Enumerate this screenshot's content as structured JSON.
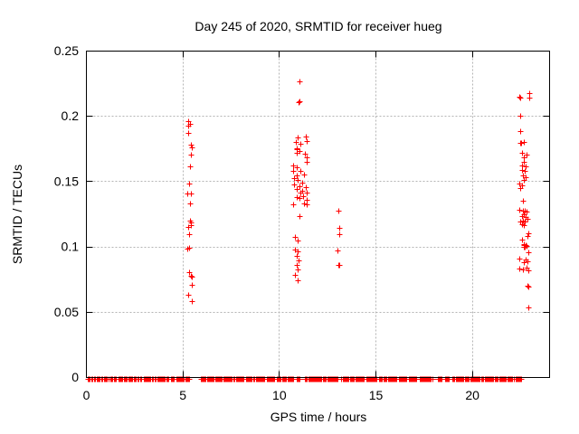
{
  "chart_data": {
    "type": "scatter",
    "title": "Day 245 of 2020, SRMTID for receiver hueg",
    "xlabel": "GPS time / hours",
    "ylabel": "SRMTID / TECUs",
    "xlim": [
      0,
      24
    ],
    "ylim": [
      0,
      0.25
    ],
    "xticks": {
      "values": [
        0,
        5,
        10,
        15,
        20
      ],
      "labels": [
        "0",
        "5",
        "10",
        "15",
        "20"
      ]
    },
    "yticks": {
      "values": [
        0,
        0.05,
        0.1,
        0.15,
        0.2,
        0.25
      ],
      "labels": [
        "0",
        "0.05",
        "0.1",
        "0.15",
        "0.2",
        "0.25"
      ]
    },
    "grid": true,
    "legend": "none",
    "marker": {
      "shape": "plus",
      "size": 7,
      "color": "#ff0000"
    },
    "axis_color": "#000000",
    "grid_color": "#b4b4b4",
    "background": "#ffffff",
    "series": [
      {
        "name": "SRMTID",
        "points": [
          [
            5.32,
            0.1958
          ],
          [
            5.4,
            0.1942
          ],
          [
            5.32,
            0.1924
          ],
          [
            5.3,
            0.1873
          ],
          [
            5.43,
            0.178
          ],
          [
            5.5,
            0.1762
          ],
          [
            5.46,
            0.1704
          ],
          [
            5.38,
            0.1611
          ],
          [
            5.35,
            0.1484
          ],
          [
            5.27,
            0.1403
          ],
          [
            5.46,
            0.1403
          ],
          [
            5.4,
            0.1333
          ],
          [
            5.4,
            0.1201
          ],
          [
            5.43,
            0.1183
          ],
          [
            5.32,
            0.1148
          ],
          [
            5.46,
            0.116
          ],
          [
            5.35,
            0.1095
          ],
          [
            5.24,
            0.0986
          ],
          [
            5.35,
            0.0993
          ],
          [
            5.35,
            0.0801
          ],
          [
            5.43,
            0.0778
          ],
          [
            5.5,
            0.0766
          ],
          [
            5.47,
            0.0708
          ],
          [
            5.32,
            0.0627
          ],
          [
            5.47,
            0.0581
          ],
          [
            11.06,
            0.2266
          ],
          [
            11.06,
            0.2109
          ],
          [
            11.03,
            0.2102
          ],
          [
            10.95,
            0.1835
          ],
          [
            11.37,
            0.1842
          ],
          [
            10.87,
            0.1803
          ],
          [
            11.13,
            0.1789
          ],
          [
            11.45,
            0.1807
          ],
          [
            10.9,
            0.175
          ],
          [
            10.92,
            0.1748
          ],
          [
            10.9,
            0.172
          ],
          [
            11.06,
            0.1734
          ],
          [
            11.34,
            0.171
          ],
          [
            11.45,
            0.1681
          ],
          [
            11.42,
            0.1651
          ],
          [
            10.74,
            0.1623
          ],
          [
            10.9,
            0.1604
          ],
          [
            10.74,
            0.1576
          ],
          [
            11.13,
            0.1576
          ],
          [
            10.9,
            0.1542
          ],
          [
            10.79,
            0.1526
          ],
          [
            11.29,
            0.1553
          ],
          [
            10.95,
            0.1507
          ],
          [
            11.21,
            0.1488
          ],
          [
            10.79,
            0.1472
          ],
          [
            11.06,
            0.146
          ],
          [
            10.9,
            0.1438
          ],
          [
            11.37,
            0.1456
          ],
          [
            11.21,
            0.1426
          ],
          [
            11.11,
            0.141
          ],
          [
            11.42,
            0.1415
          ],
          [
            10.9,
            0.138
          ],
          [
            11.26,
            0.1387
          ],
          [
            11.06,
            0.1368
          ],
          [
            11.42,
            0.1356
          ],
          [
            10.74,
            0.1326
          ],
          [
            11.29,
            0.1333
          ],
          [
            11.45,
            0.1322
          ],
          [
            11.06,
            0.1234
          ],
          [
            10.85,
            0.1072
          ],
          [
            10.95,
            0.1044
          ],
          [
            10.82,
            0.0979
          ],
          [
            10.98,
            0.0963
          ],
          [
            10.9,
            0.0928
          ],
          [
            11.01,
            0.0894
          ],
          [
            10.9,
            0.0859
          ],
          [
            10.95,
            0.0824
          ],
          [
            10.85,
            0.0785
          ],
          [
            10.95,
            0.0743
          ],
          [
            13.09,
            0.1271
          ],
          [
            13.14,
            0.1141
          ],
          [
            13.14,
            0.1097
          ],
          [
            13.04,
            0.097
          ],
          [
            13.09,
            0.0859
          ],
          [
            13.12,
            0.0856
          ],
          [
            22.44,
            0.2144
          ],
          [
            22.52,
            0.2141
          ],
          [
            22.99,
            0.2174
          ],
          [
            22.99,
            0.2137
          ],
          [
            22.51,
            0.1998
          ],
          [
            22.51,
            0.1882
          ],
          [
            22.52,
            0.1796
          ],
          [
            22.57,
            0.1796
          ],
          [
            22.71,
            0.1803
          ],
          [
            22.58,
            0.1715
          ],
          [
            22.84,
            0.1704
          ],
          [
            22.68,
            0.1681
          ],
          [
            22.71,
            0.1646
          ],
          [
            22.58,
            0.1623
          ],
          [
            22.79,
            0.1611
          ],
          [
            22.58,
            0.1588
          ],
          [
            22.74,
            0.1576
          ],
          [
            22.63,
            0.1542
          ],
          [
            22.79,
            0.153
          ],
          [
            22.68,
            0.1507
          ],
          [
            22.47,
            0.1479
          ],
          [
            22.58,
            0.1465
          ],
          [
            22.52,
            0.1449
          ],
          [
            22.63,
            0.1349
          ],
          [
            22.47,
            0.128
          ],
          [
            22.63,
            0.1276
          ],
          [
            22.74,
            0.1271
          ],
          [
            22.84,
            0.1264
          ],
          [
            22.68,
            0.1248
          ],
          [
            22.58,
            0.1234
          ],
          [
            22.79,
            0.1229
          ],
          [
            22.86,
            0.1211
          ],
          [
            22.63,
            0.1201
          ],
          [
            22.52,
            0.1194
          ],
          [
            22.74,
            0.1188
          ],
          [
            22.58,
            0.1171
          ],
          [
            22.68,
            0.116
          ],
          [
            22.94,
            0.1102
          ],
          [
            22.86,
            0.1079
          ],
          [
            22.58,
            0.1056
          ],
          [
            22.71,
            0.1021
          ],
          [
            22.79,
            0.1009
          ],
          [
            22.68,
            0.0998
          ],
          [
            22.75,
            0.0995
          ],
          [
            22.71,
            0.1014
          ],
          [
            22.82,
            0.1005
          ],
          [
            22.94,
            0.0956
          ],
          [
            22.47,
            0.091
          ],
          [
            22.79,
            0.0901
          ],
          [
            22.86,
            0.0887
          ],
          [
            22.68,
            0.0877
          ],
          [
            22.47,
            0.0831
          ],
          [
            22.63,
            0.0824
          ],
          [
            22.84,
            0.0835
          ],
          [
            22.94,
            0.0817
          ],
          [
            22.86,
            0.0697
          ],
          [
            22.9,
            0.0694
          ],
          [
            22.9,
            0.0535
          ]
        ]
      }
    ],
    "baseline": {
      "value": 0,
      "step_hours": 0.05,
      "segments": [
        [
          0.08,
          0.22
        ],
        [
          0.28,
          0.34
        ],
        [
          0.42,
          0.48
        ],
        [
          0.55,
          0.6
        ],
        [
          0.66,
          0.72
        ],
        [
          0.8,
          0.86
        ],
        [
          0.92,
          1.04
        ],
        [
          1.1,
          1.18
        ],
        [
          1.25,
          1.3
        ],
        [
          1.38,
          1.44
        ],
        [
          1.52,
          1.6
        ],
        [
          1.68,
          1.88
        ],
        [
          1.98,
          2.28
        ],
        [
          2.36,
          2.42
        ],
        [
          2.5,
          2.72
        ],
        [
          2.82,
          2.9
        ],
        [
          3.0,
          3.45
        ],
        [
          3.55,
          3.62
        ],
        [
          3.7,
          4.28
        ],
        [
          4.4,
          4.58
        ],
        [
          4.68,
          5.08
        ],
        [
          5.16,
          5.38
        ],
        [
          5.95,
          6.2
        ],
        [
          6.28,
          7.05
        ],
        [
          7.12,
          7.58
        ],
        [
          7.66,
          8.2
        ],
        [
          8.3,
          8.7
        ],
        [
          8.8,
          9.28
        ],
        [
          9.36,
          9.8
        ],
        [
          9.9,
          10.3
        ],
        [
          10.38,
          10.74
        ],
        [
          10.92,
          11.08
        ],
        [
          11.36,
          12.42
        ],
        [
          12.5,
          13.08
        ],
        [
          13.24,
          13.6
        ],
        [
          13.68,
          13.88
        ],
        [
          13.96,
          14.42
        ],
        [
          14.52,
          15.1
        ],
        [
          15.2,
          15.55
        ],
        [
          15.64,
          16.1
        ],
        [
          16.2,
          16.62
        ],
        [
          16.72,
          17.16
        ],
        [
          17.28,
          17.94
        ],
        [
          18.24,
          18.48
        ],
        [
          18.62,
          18.86
        ],
        [
          19.0,
          19.55
        ],
        [
          19.65,
          20.4
        ],
        [
          20.5,
          21.1
        ],
        [
          21.2,
          21.75
        ],
        [
          21.85,
          22.15
        ],
        [
          22.25,
          22.55
        ]
      ]
    }
  }
}
